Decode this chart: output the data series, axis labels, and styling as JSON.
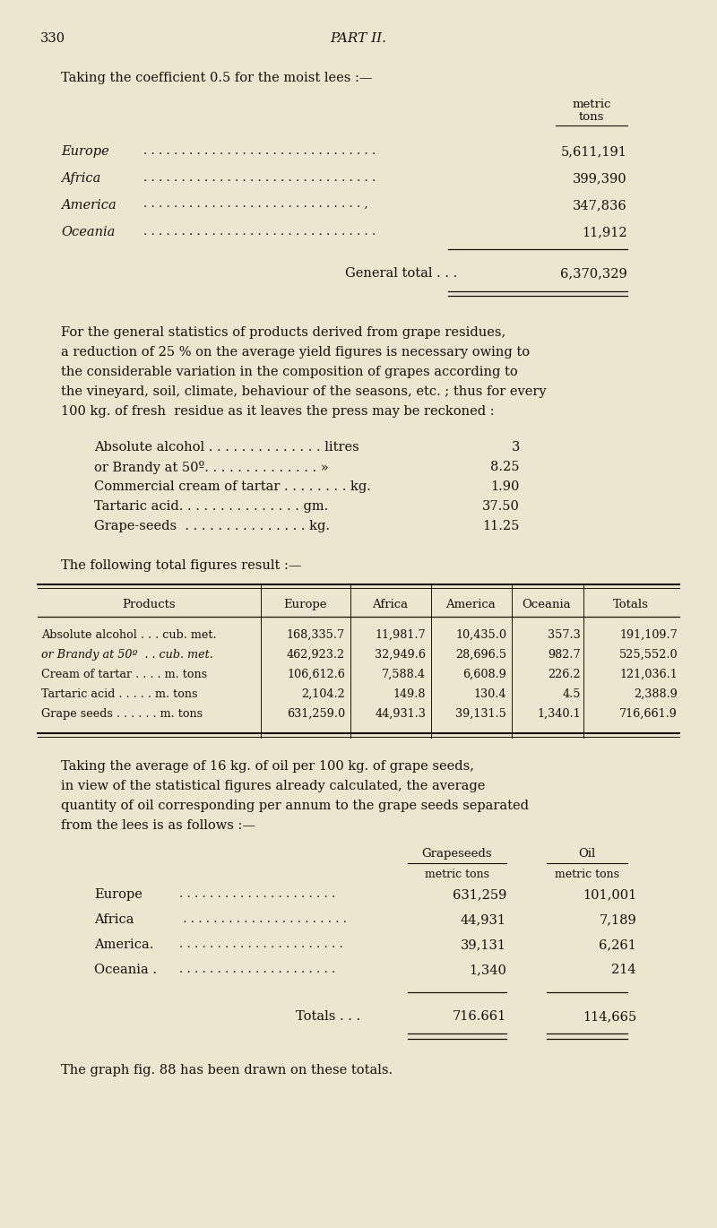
{
  "bg_color": "#ede5d0",
  "text_color": "#1a1008",
  "page_number": "330",
  "page_title": "PART II.",
  "section1_heading": "Taking the coefficient 0.5 for the moist lees :—",
  "section1_col_header1": "metric",
  "section1_col_header2": "tons",
  "section1_rows": [
    [
      "Europe",
      "5,611,191"
    ],
    [
      "Africa",
      "399,390"
    ],
    [
      "America",
      "347,836"
    ],
    [
      "Oceania",
      "11,912"
    ]
  ],
  "section1_total_label": "General total . . .",
  "section1_total_value": "6,370,329",
  "para1_lines": [
    "For the general statistics of products derived from grape residues,",
    "a reduction of 25 % on the average yield figures is necessary owing to",
    "the considerable variation in the composition of grapes according to",
    "the vineyard, soil, climate, behaviour of the seasons, etc. ; thus for every",
    "100 kg. of fresh  residue as it leaves the press may be reckoned :"
  ],
  "list_items": [
    [
      "Absolute alcohol . . . . . . . . . . . . . . litres",
      "3"
    ],
    [
      "or Brandy at 50º. . . . . . . . . . . . . . »",
      "8.25"
    ],
    [
      "Commercial cream of tartar . . . . . . . . kg.",
      "1.90"
    ],
    [
      "Tartaric acid. . . . . . . . . . . . . . . gm.",
      "37.50"
    ],
    [
      "Grape-seeds  . . . . . . . . . . . . . . . kg.",
      "11.25"
    ]
  ],
  "table_heading": "The following total figures result :—",
  "table1_cols": [
    "Products",
    "Europe",
    "Africa",
    "America",
    "Oceania",
    "Totals"
  ],
  "table1_rows": [
    [
      "Absolute alcohol . . . cub. met.",
      "168,335.7",
      "11,981.7",
      "10,435.0",
      "357.3",
      "191,109.7"
    ],
    [
      "or Brandy at 50º  . . cub. met.",
      "462,923.2",
      "32,949.6",
      "28,696.5",
      "982.7",
      "525,552.0"
    ],
    [
      "Cream of tartar . . . . m. tons",
      "106,612.6",
      "7,588.4",
      "6,608.9",
      "226.2",
      "121,036.1"
    ],
    [
      "Tartaric acid . . . . . m. tons",
      "2,104.2",
      "149.8",
      "130.4",
      "4.5",
      "2,388.9"
    ],
    [
      "Grape seeds . . . . . . m. tons",
      "631,259.0",
      "44,931.3",
      "39,131.5",
      "1,340.1",
      "716,661.9"
    ]
  ],
  "para2_lines": [
    "Taking the average of 16 kg. of oil per 100 kg. of grape seeds,",
    "in view of the statistical figures already calculated, the average",
    "quantity of oil corresponding per annum to the grape seeds separated",
    "from the lees is as follows :—"
  ],
  "section2_rows": [
    [
      "Europe",
      "631,259",
      "101,001"
    ],
    [
      "Africa",
      "44,931",
      "7,189"
    ],
    [
      "America.",
      "39,131",
      "6,261"
    ],
    [
      "Oceania .",
      "1,340",
      "214"
    ]
  ],
  "section2_total_label": "Totals . . .",
  "section2_total_grapeseeds": "716.661",
  "section2_total_oil": "114,665",
  "final_line": "The graph fig. 88 has been drawn on these totals.",
  "dots_short": ". . . . . . . . . . . . . . . . . . . . .",
  "dots_long": ". . . . . . . . . . . . . . . . . . . . . . . . . . . . . . . . . . . . . .",
  "dots_med": ". . . . . . . . . . . . . ."
}
